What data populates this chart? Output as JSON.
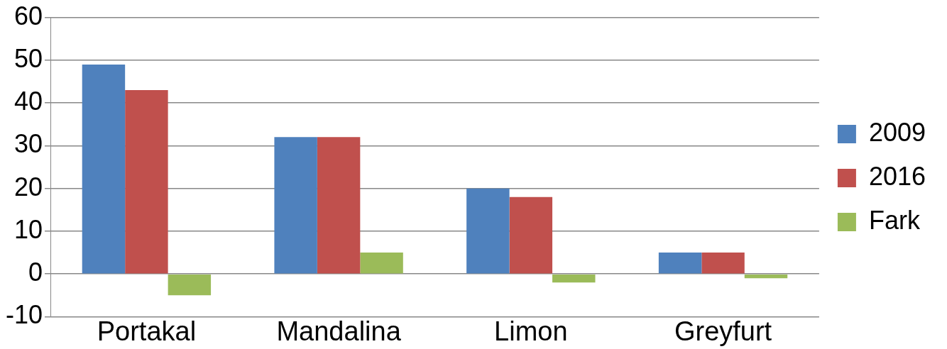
{
  "chart_data": {
    "type": "bar",
    "categories": [
      "Portakal",
      "Mandalina",
      "Limon",
      "Greyfurt"
    ],
    "series": [
      {
        "name": "2009",
        "color": "#4f81bd",
        "values": [
          49,
          32,
          20,
          5
        ]
      },
      {
        "name": "2016",
        "color": "#c0504d",
        "values": [
          43,
          32,
          18,
          5
        ]
      },
      {
        "name": "Fark",
        "color": "#9bbb59",
        "values": [
          -5,
          5,
          -2,
          -1
        ]
      }
    ],
    "ylim": [
      -10,
      60
    ],
    "yticks": [
      -10,
      0,
      10,
      20,
      30,
      40,
      50,
      60
    ],
    "grid": "y",
    "legend": "right"
  }
}
